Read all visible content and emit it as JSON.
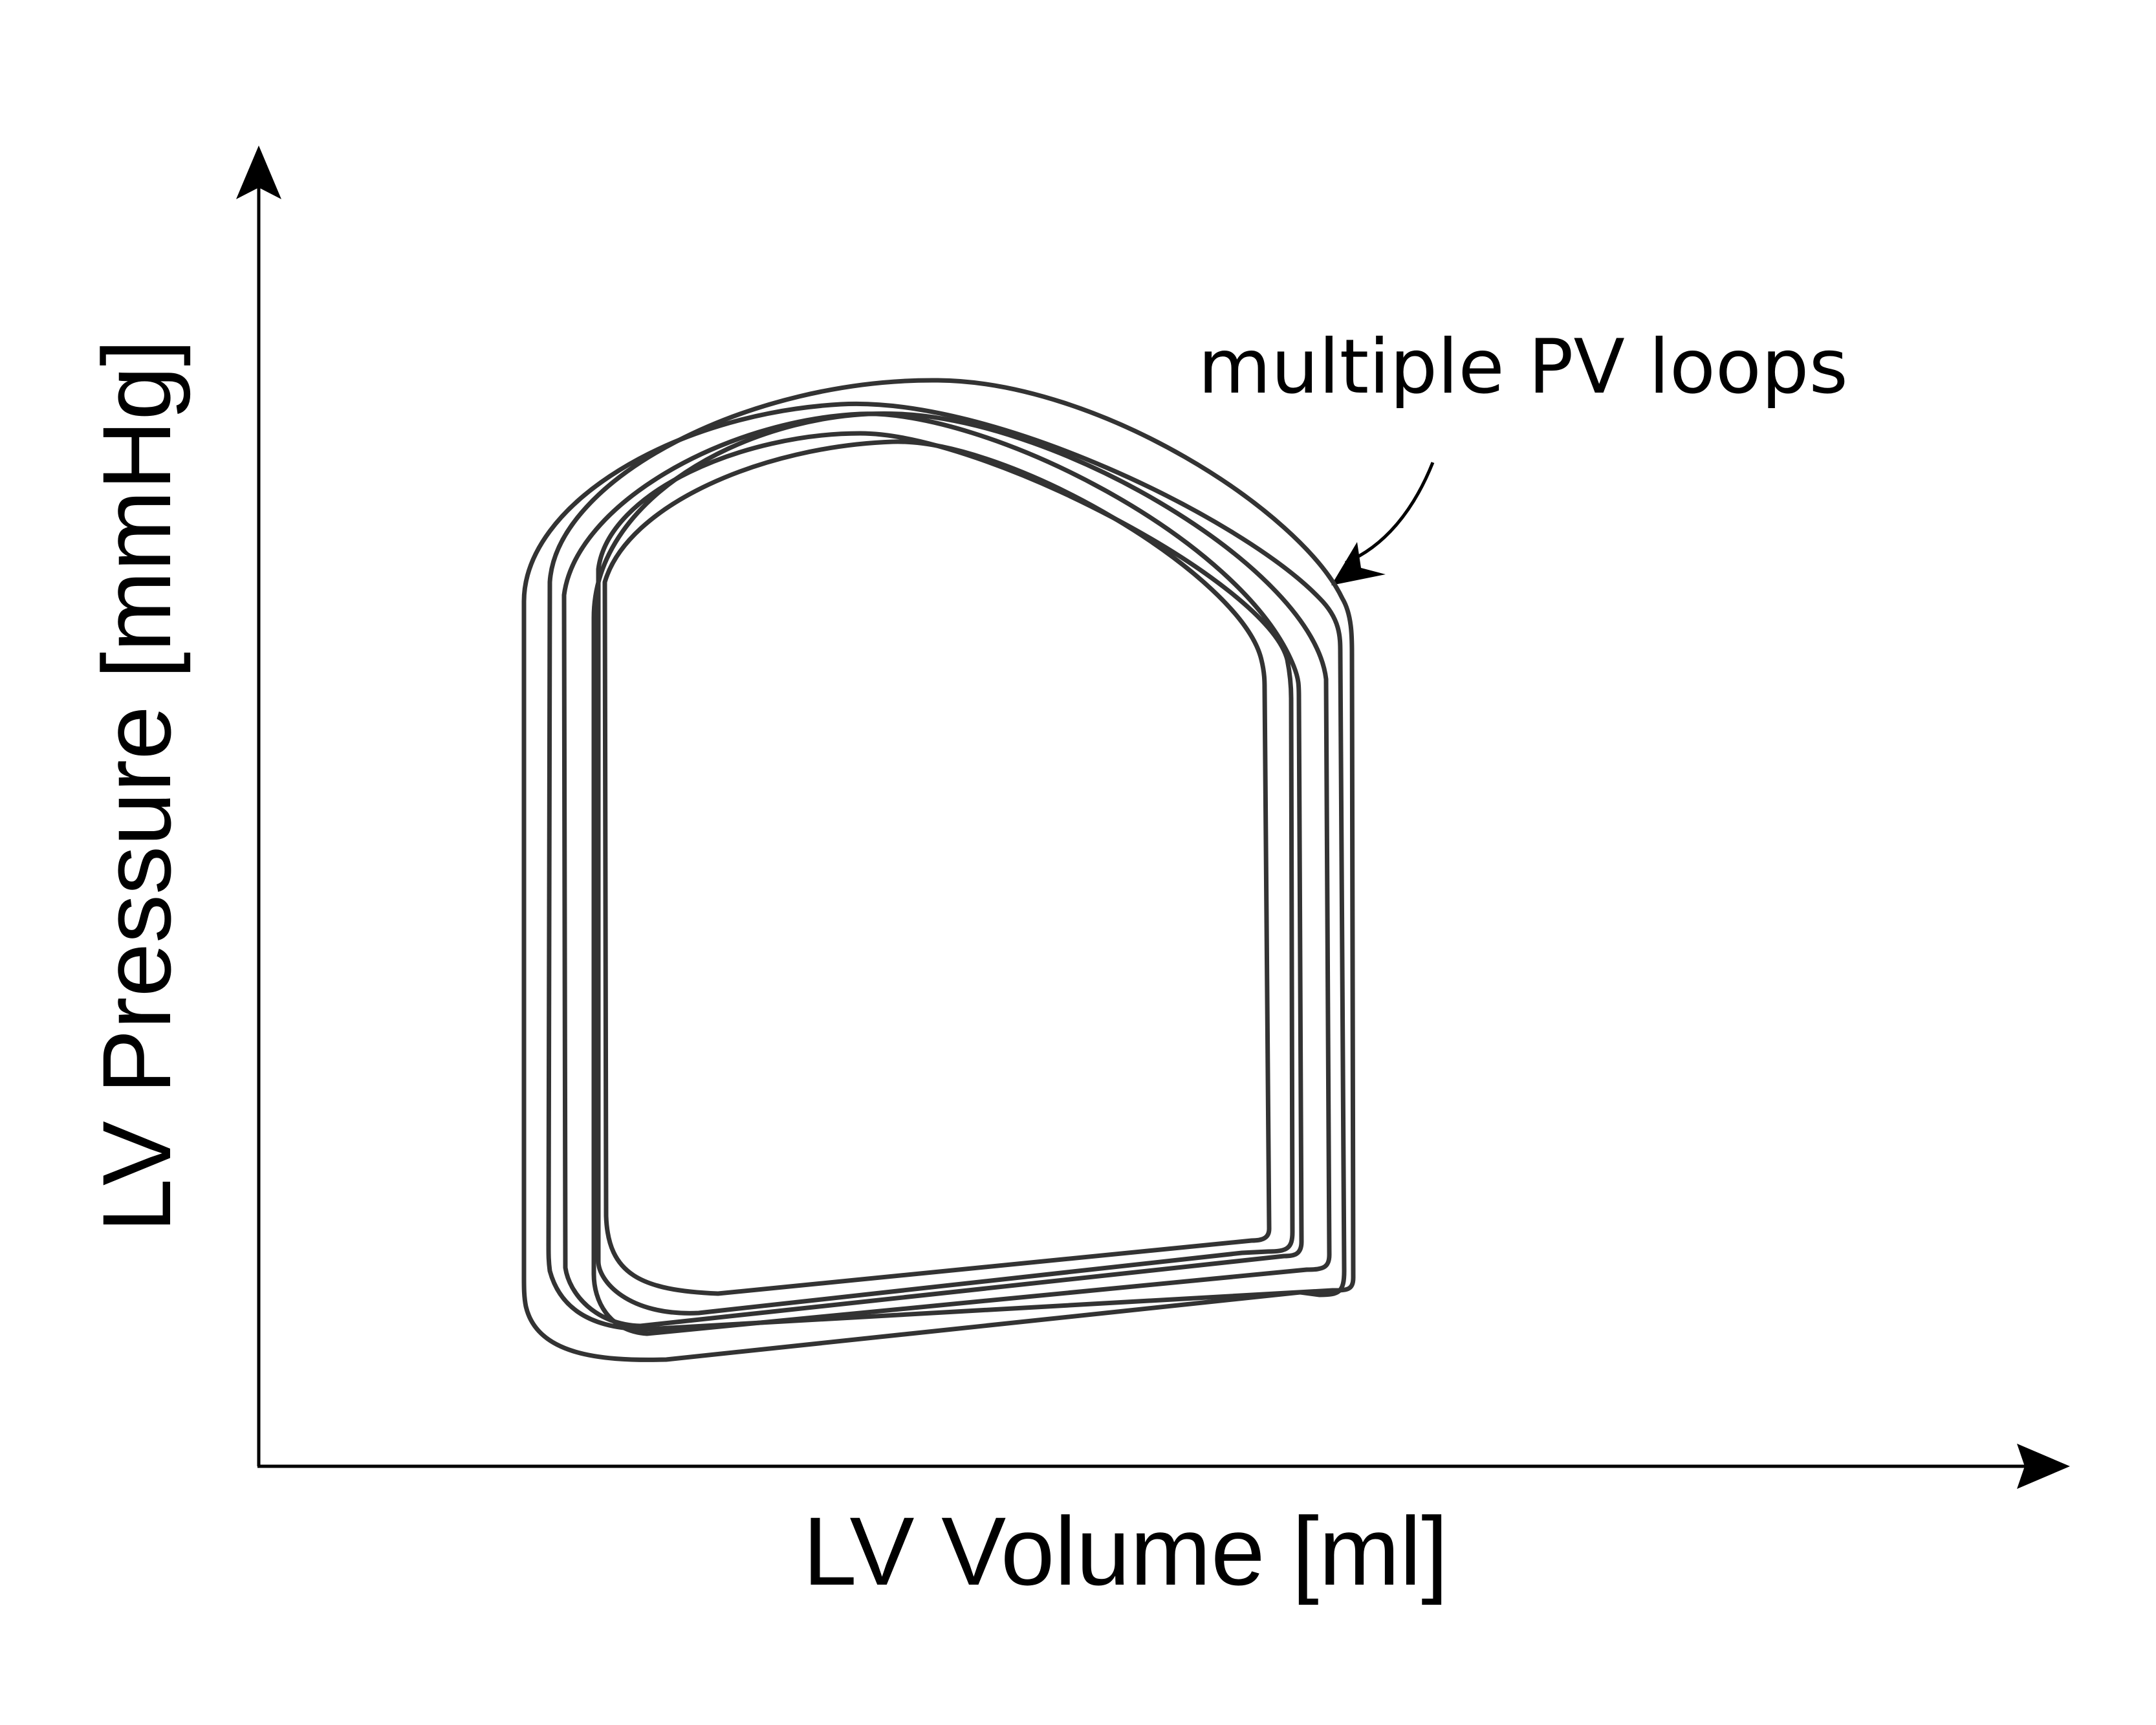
{
  "diagram": {
    "x_axis_label": "LV Volume [ml]",
    "y_axis_label": "LV Pressure [mmHg]",
    "annotation": "multiple PV loops",
    "loop_color": "#333333",
    "axis_color": "#000000"
  }
}
